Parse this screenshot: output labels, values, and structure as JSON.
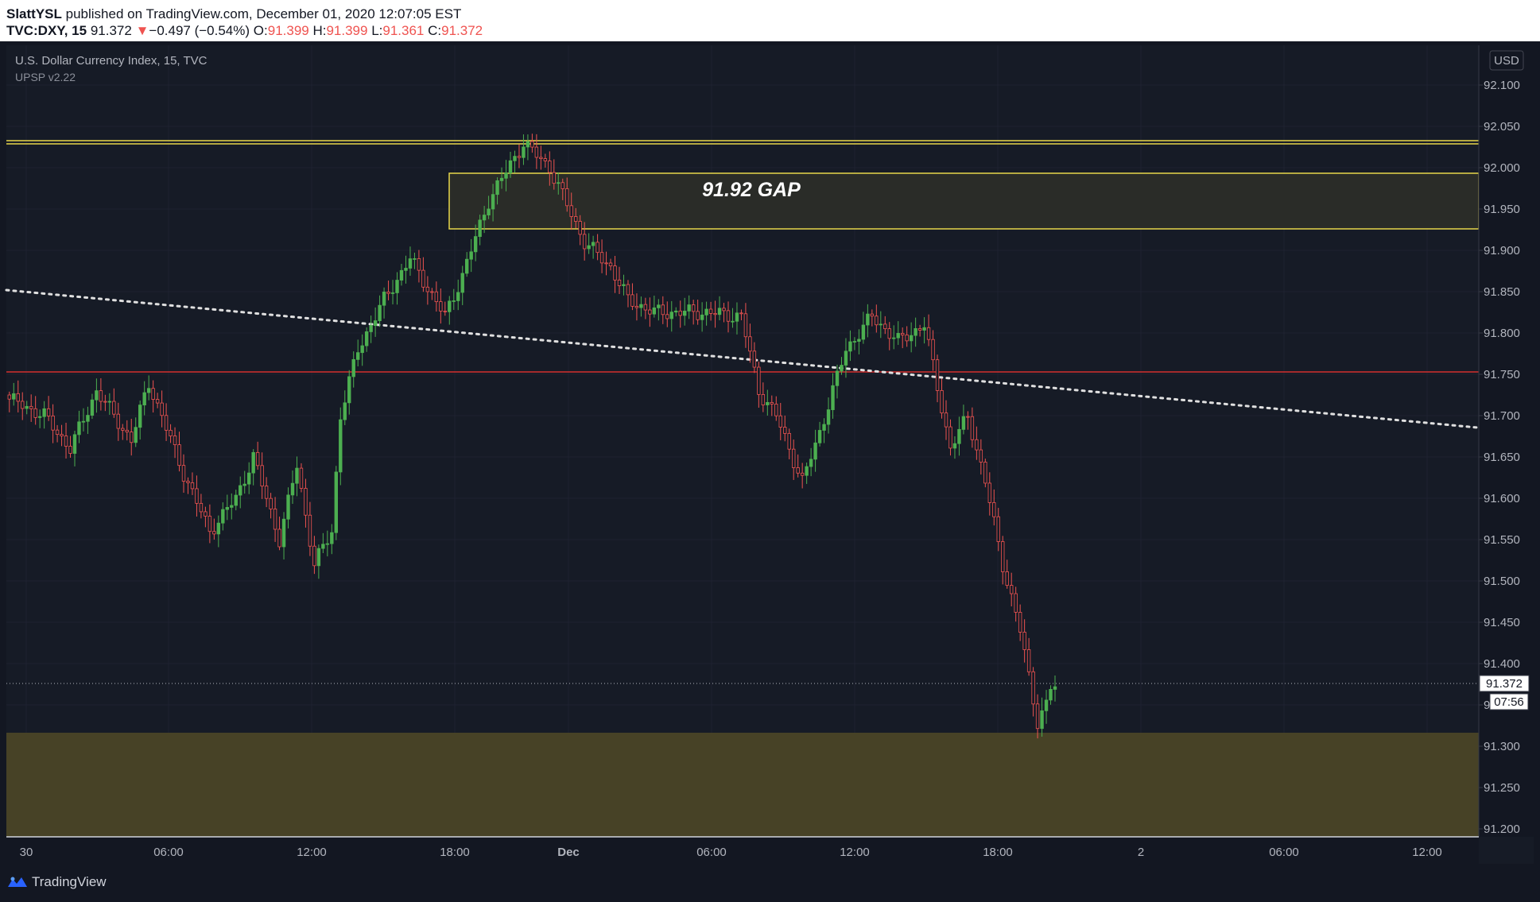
{
  "header": {
    "author": "SlattYSL",
    "published_text": " published on TradingView.com, December 01, 2020 12:07:05 EST",
    "symbol": "TVC:DXY, 15",
    "last": "91.372",
    "change_arrow": "▼",
    "change": "−0.497 (−0.54%)",
    "o_label": "O:",
    "o_value": "91.399",
    "h_label": "H:",
    "h_value": "91.399",
    "l_label": "L:",
    "l_value": "91.361",
    "c_label": "C:",
    "c_value": "91.372"
  },
  "legend": {
    "instrument": "U.S. Dollar Currency Index, 15, TVC",
    "indicator": "UPSP v2.22"
  },
  "price_axis": {
    "currency": "USD",
    "ticks": [
      "92.100",
      "92.050",
      "92.000",
      "91.950",
      "91.900",
      "91.850",
      "91.800",
      "91.750",
      "91.700",
      "91.650",
      "91.600",
      "91.550",
      "91.500",
      "91.450",
      "91.400",
      "91.350",
      "91.300",
      "91.250",
      "91.200"
    ],
    "last_price_label": "91.372",
    "countdown_label": "07:56"
  },
  "time_axis": {
    "ticks": [
      "30",
      "06:00",
      "12:00",
      "18:00",
      "Dec",
      "06:00",
      "12:00",
      "18:00",
      "2",
      "06:00",
      "12:00"
    ]
  },
  "annotations": {
    "gap_label": "91.92 GAP"
  },
  "colors": {
    "up": "#4caf50",
    "down": "#ef5350",
    "background": "#131722",
    "resistance": "#e8d84a",
    "support_zone": "#4a4426",
    "level_line": "#d32f2f"
  },
  "branding": {
    "name": "TradingView",
    "icon": "tradingview-logo-icon"
  }
}
